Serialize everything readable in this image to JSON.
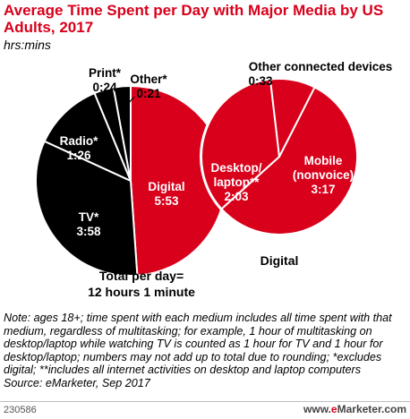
{
  "title": "Average Time Spent per Day with Major Media by US Adults, 2017",
  "subtitle": "hrs:mins",
  "total_label_line1": "Total per day=",
  "total_label_line2": "12 hours 1 minute",
  "digital_breakdown_label": "Digital",
  "note": "Note: ages 18+; time spent with each medium includes all time spent with that medium, regardless of multitasking; for example, 1 hour of multitasking on desktop/laptop while watching TV is counted as 1 hour for TV and 1 hour for desktop/laptop; numbers may not add up to total due to rounding; *excludes digital; **includes all internet activities on desktop and laptop computers",
  "source": "Source: eMarketer, Sep 2017",
  "chart_id": "230586",
  "brand": {
    "prefix": "www.",
    "accent": "e",
    "name": "Marketer",
    "suffix": ".com"
  },
  "colors": {
    "accent": "#d9001b",
    "black": "#000000",
    "white": "#ffffff"
  },
  "chart_data": [
    {
      "type": "pie",
      "unit": "hrs:mins",
      "slices": [
        {
          "label": "Digital",
          "value": "5:53",
          "minutes": 353,
          "color": "#d9001b"
        },
        {
          "label": "TV*",
          "value": "3:58",
          "minutes": 238,
          "color": "#000000"
        },
        {
          "label": "Radio*",
          "value": "1:26",
          "minutes": 86,
          "color": "#000000"
        },
        {
          "label": "Print*",
          "value": "0:24",
          "minutes": 24,
          "color": "#000000"
        },
        {
          "label": "Other*",
          "value": "0:21",
          "minutes": 21,
          "color": "#000000"
        }
      ]
    },
    {
      "type": "pie",
      "unit": "hrs:mins",
      "title": "Digital",
      "slices": [
        {
          "label": "Mobile (nonvoice)",
          "value": "3:17",
          "minutes": 197,
          "color": "#d9001b"
        },
        {
          "label": "Desktop/ laptop**",
          "value": "2:03",
          "minutes": 123,
          "color": "#d9001b"
        },
        {
          "label": "Other connected devices",
          "value": "0:33",
          "minutes": 33,
          "color": "#d9001b"
        }
      ]
    }
  ]
}
